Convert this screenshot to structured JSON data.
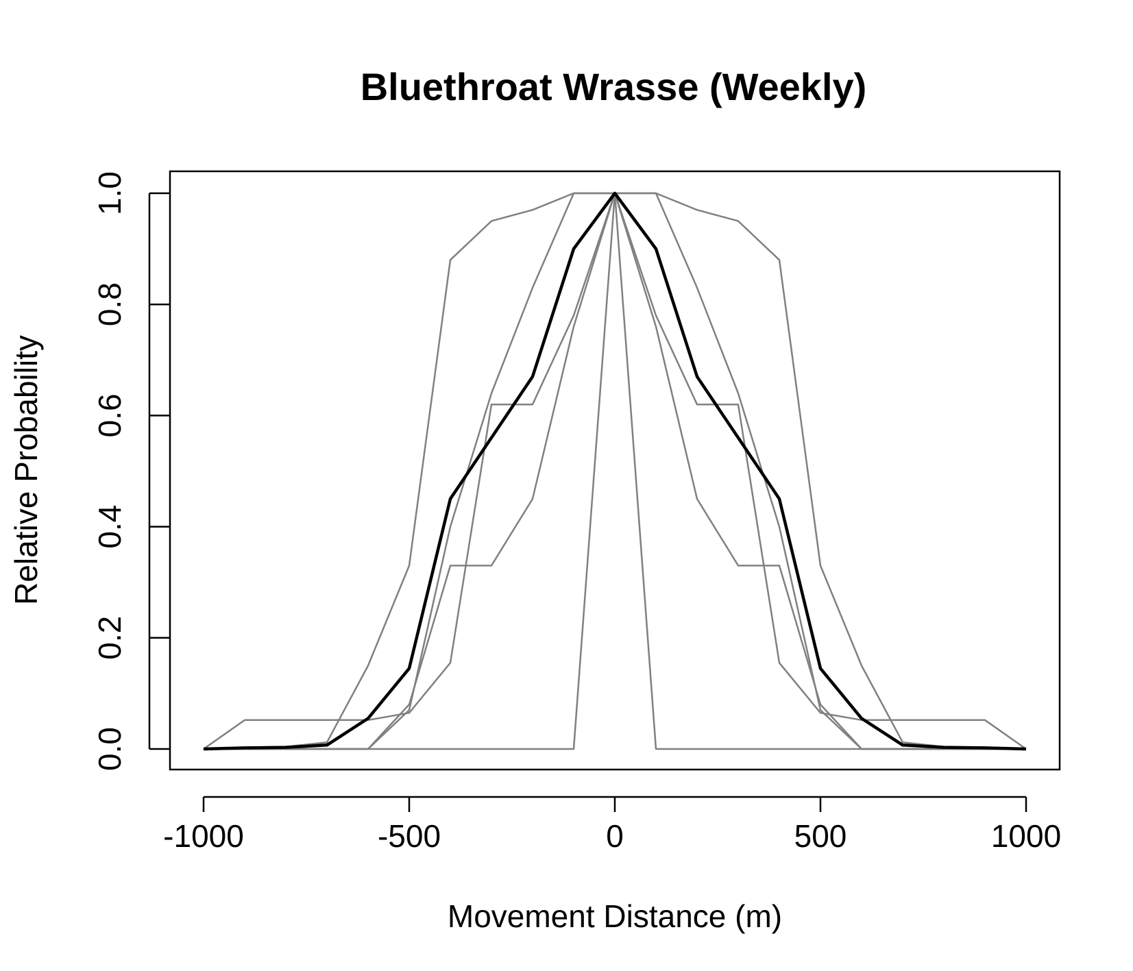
{
  "chart_data": {
    "type": "line",
    "title": "Bluethroat Wrasse (Weekly)",
    "xlabel": "Movement Distance (m)",
    "ylabel": "Relative Probability",
    "xlim": [
      -1000,
      1000
    ],
    "ylim": [
      0,
      1
    ],
    "xticks": [
      -1000,
      -500,
      0,
      500,
      1000
    ],
    "xtick_labels": [
      "-1000",
      "-500",
      "0",
      "500",
      "1000"
    ],
    "yticks": [
      0,
      0.2,
      0.4,
      0.6,
      0.8,
      1.0
    ],
    "ytick_labels": [
      "0.0",
      "0.2",
      "0.4",
      "0.6",
      "0.8",
      "1.0"
    ],
    "grid": false,
    "x": [
      -1000,
      -900,
      -800,
      -700,
      -600,
      -500,
      -400,
      -300,
      -200,
      -100,
      0,
      100,
      200,
      300,
      400,
      500,
      600,
      700,
      800,
      900,
      1000
    ],
    "series": [
      {
        "color": "#808080",
        "values": [
          0,
          0.003,
          0.004,
          0.012,
          0.15,
          0.33,
          0.88,
          0.95,
          0.97,
          1.0,
          1.0,
          1.0,
          0.97,
          0.95,
          0.88,
          0.33,
          0.15,
          0.012,
          0.004,
          0.003,
          0
        ]
      },
      {
        "color": "#808080",
        "values": [
          0,
          0,
          0,
          0,
          0,
          0.08,
          0.33,
          0.33,
          0.45,
          0.76,
          1.0,
          0.76,
          0.45,
          0.33,
          0.33,
          0.08,
          0,
          0,
          0,
          0,
          0
        ]
      },
      {
        "color": "#808080",
        "values": [
          0,
          0,
          0,
          0,
          0,
          0.07,
          0.4,
          0.64,
          0.83,
          1.0,
          1.0,
          1.0,
          0.83,
          0.64,
          0.4,
          0.07,
          0,
          0,
          0,
          0,
          0
        ]
      },
      {
        "color": "#808080",
        "values": [
          0,
          0.052,
          0.052,
          0.052,
          0.052,
          0.065,
          0.155,
          0.62,
          0.62,
          0.78,
          1.0,
          0.78,
          0.62,
          0.62,
          0.155,
          0.065,
          0.052,
          0.052,
          0.052,
          0.052,
          0
        ]
      },
      {
        "color": "#808080",
        "values": [
          0,
          0,
          0,
          0,
          0,
          0,
          0,
          0,
          0,
          0,
          1.0,
          0,
          0,
          0,
          0,
          0,
          0,
          0,
          0,
          0,
          0
        ]
      },
      {
        "color": "#000000",
        "bold": true,
        "values": [
          0,
          0.002,
          0.003,
          0.007,
          0.055,
          0.145,
          0.45,
          0.56,
          0.67,
          0.9,
          1.0,
          0.9,
          0.67,
          0.56,
          0.45,
          0.145,
          0.055,
          0.007,
          0.003,
          0.002,
          0
        ]
      }
    ]
  }
}
